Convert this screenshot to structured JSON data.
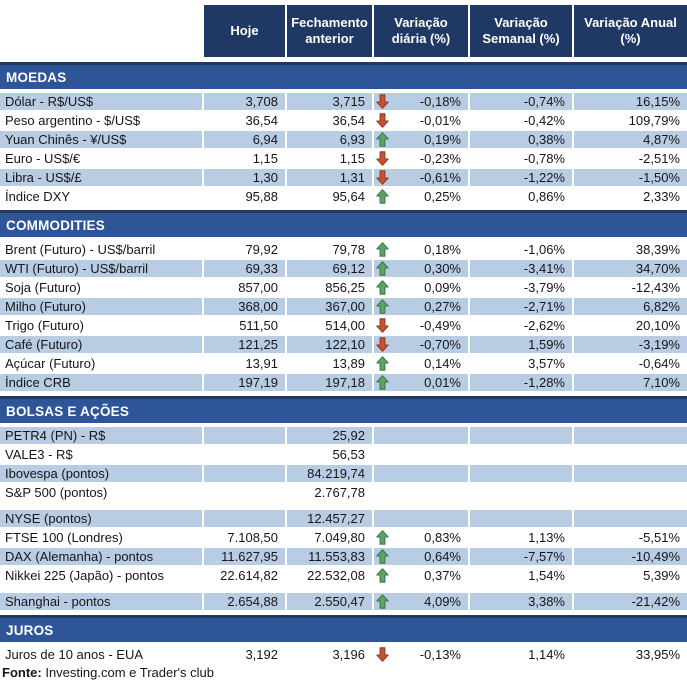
{
  "colors": {
    "header_bg": "#1F3864",
    "band_bg": "#2E5597",
    "row_blue": "#B8CCE4",
    "arrow_up_fill": "#5FA465",
    "arrow_up_stroke": "#3F7A4E",
    "arrow_down_fill": "#C75233",
    "arrow_down_stroke": "#973C21"
  },
  "header": {
    "columns": [
      "Hoje",
      "Fechamento anterior",
      "Variação diária (%)",
      "Variação Semanal (%)",
      "Variação Anual (%)"
    ]
  },
  "sections": [
    {
      "title": "MOEDAS",
      "first_shade": "blue",
      "rows": [
        {
          "label": "Dólar - R$/US$",
          "hoje": "3,708",
          "fechamento": "3,715",
          "arrow": "down",
          "diaria": "-0,18%",
          "semanal": "-0,74%",
          "anual": "16,15%"
        },
        {
          "label": "Peso argentino - $/US$",
          "hoje": "36,54",
          "fechamento": "36,54",
          "arrow": "down",
          "diaria": "-0,01%",
          "semanal": "-0,42%",
          "anual": "109,79%"
        },
        {
          "label": "Yuan Chinês - ¥/US$",
          "hoje": "6,94",
          "fechamento": "6,93",
          "arrow": "up",
          "diaria": "0,19%",
          "semanal": "0,38%",
          "anual": "4,87%"
        },
        {
          "label": "Euro - US$/€",
          "hoje": "1,15",
          "fechamento": "1,15",
          "arrow": "down",
          "diaria": "-0,23%",
          "semanal": "-0,78%",
          "anual": "-2,51%"
        },
        {
          "label": "Libra - US$/£",
          "hoje": "1,30",
          "fechamento": "1,31",
          "arrow": "down",
          "diaria": "-0,61%",
          "semanal": "-1,22%",
          "anual": "-1,50%"
        },
        {
          "label": "Índice DXY",
          "hoje": "95,88",
          "fechamento": "95,64",
          "arrow": "up",
          "diaria": "0,25%",
          "semanal": "0,86%",
          "anual": "2,33%"
        }
      ]
    },
    {
      "title": "COMMODITIES",
      "first_shade": "white",
      "rows": [
        {
          "label": "Brent (Futuro) - US$/barril",
          "hoje": "79,92",
          "fechamento": "79,78",
          "arrow": "up",
          "diaria": "0,18%",
          "semanal": "-1,06%",
          "anual": "38,39%"
        },
        {
          "label": "WTI (Futuro) - US$/barril",
          "hoje": "69,33",
          "fechamento": "69,12",
          "arrow": "up",
          "diaria": "0,30%",
          "semanal": "-3,41%",
          "anual": "34,70%"
        },
        {
          "label": "Soja (Futuro)",
          "hoje": "857,00",
          "fechamento": "856,25",
          "arrow": "up",
          "diaria": "0,09%",
          "semanal": "-3,79%",
          "anual": "-12,43%"
        },
        {
          "label": "Milho (Futuro)",
          "hoje": "368,00",
          "fechamento": "367,00",
          "arrow": "up",
          "diaria": "0,27%",
          "semanal": "-2,71%",
          "anual": "6,82%"
        },
        {
          "label": "Trigo (Futuro)",
          "hoje": "511,50",
          "fechamento": "514,00",
          "arrow": "down",
          "diaria": "-0,49%",
          "semanal": "-2,62%",
          "anual": "20,10%"
        },
        {
          "label": "Café (Futuro)",
          "hoje": "121,25",
          "fechamento": "122,10",
          "arrow": "down",
          "diaria": "-0,70%",
          "semanal": "1,59%",
          "anual": "-3,19%"
        },
        {
          "label": "Açúcar (Futuro)",
          "hoje": "13,91",
          "fechamento": "13,89",
          "arrow": "up",
          "diaria": "0,14%",
          "semanal": "3,57%",
          "anual": "-0,64%"
        },
        {
          "label": "Índice CRB",
          "hoje": "197,19",
          "fechamento": "197,18",
          "arrow": "up",
          "diaria": "0,01%",
          "semanal": "-1,28%",
          "anual": "7,10%"
        }
      ]
    },
    {
      "title": "BOLSAS E AÇÕES",
      "first_shade": "blue",
      "rows": [
        {
          "label": "PETR4 (PN) - R$",
          "hoje": "",
          "fechamento": "25,92",
          "arrow": null,
          "diaria": "",
          "semanal": "",
          "anual": ""
        },
        {
          "label": "VALE3 - R$",
          "hoje": "",
          "fechamento": "56,53",
          "arrow": null,
          "diaria": "",
          "semanal": "",
          "anual": ""
        },
        {
          "label": "Ibovespa (pontos)",
          "hoje": "",
          "fechamento": "84.219,74",
          "arrow": null,
          "diaria": "",
          "semanal": "",
          "anual": ""
        },
        {
          "label": "S&P 500 (pontos)",
          "hoje": "",
          "fechamento": "2.767,78",
          "arrow": null,
          "diaria": "",
          "semanal": "",
          "anual": ""
        },
        {
          "spacer": true
        },
        {
          "label": "NYSE (pontos)",
          "hoje": "",
          "fechamento": "12.457,27",
          "arrow": null,
          "diaria": "",
          "semanal": "",
          "anual": ""
        },
        {
          "label": "FTSE 100 (Londres)",
          "hoje": "7.108,50",
          "fechamento": "7.049,80",
          "arrow": "up",
          "diaria": "0,83%",
          "semanal": "1,13%",
          "anual": "-5,51%"
        },
        {
          "label": "DAX (Alemanha) - pontos",
          "hoje": "11.627,95",
          "fechamento": "11.553,83",
          "arrow": "up",
          "diaria": "0,64%",
          "semanal": "-7,57%",
          "anual": "-10,49%"
        },
        {
          "label": "Nikkei 225 (Japão) - pontos",
          "hoje": "22.614,82",
          "fechamento": "22.532,08",
          "arrow": "up",
          "diaria": "0,37%",
          "semanal": "1,54%",
          "anual": "5,39%"
        },
        {
          "spacer": true
        },
        {
          "label": "Shanghai - pontos",
          "hoje": "2.654,88",
          "fechamento": "2.550,47",
          "arrow": "up",
          "diaria": "4,09%",
          "semanal": "3,38%",
          "anual": "-21,42%"
        }
      ]
    },
    {
      "title": "JUROS",
      "first_shade": "white",
      "rows": [
        {
          "label": "Juros de 10 anos - EUA",
          "hoje": "3,192",
          "fechamento": "3,196",
          "arrow": "down",
          "diaria": "-0,13%",
          "semanal": "1,14%",
          "anual": "33,95%"
        }
      ]
    }
  ],
  "footer": {
    "label": "Fonte:",
    "text": " Investing.com e Trader's club"
  }
}
